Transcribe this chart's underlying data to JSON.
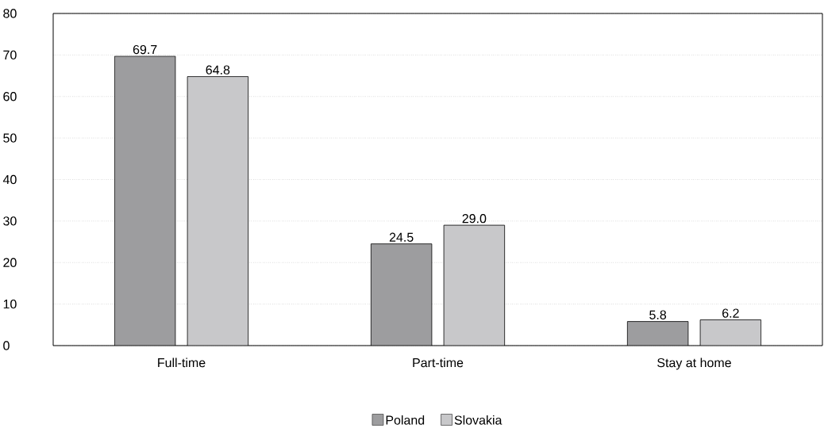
{
  "chart_data": {
    "type": "bar",
    "categories": [
      "Full-time",
      "Part-time",
      "Stay at home"
    ],
    "series": [
      {
        "name": "Poland",
        "color": "#9d9d9f",
        "values": [
          69.7,
          24.5,
          5.8
        ],
        "value_labels": [
          "69.7",
          "24.5",
          "5.8"
        ]
      },
      {
        "name": "Slovakia",
        "color": "#c8c8ca",
        "values": [
          64.8,
          29.0,
          6.2
        ],
        "value_labels": [
          "64.8",
          "29.0",
          "6.2"
        ]
      }
    ],
    "ylim": [
      0,
      80
    ],
    "yticks": [
      0,
      10,
      20,
      30,
      40,
      50,
      60,
      70,
      80
    ],
    "grid": "y",
    "legend": "bottom"
  }
}
